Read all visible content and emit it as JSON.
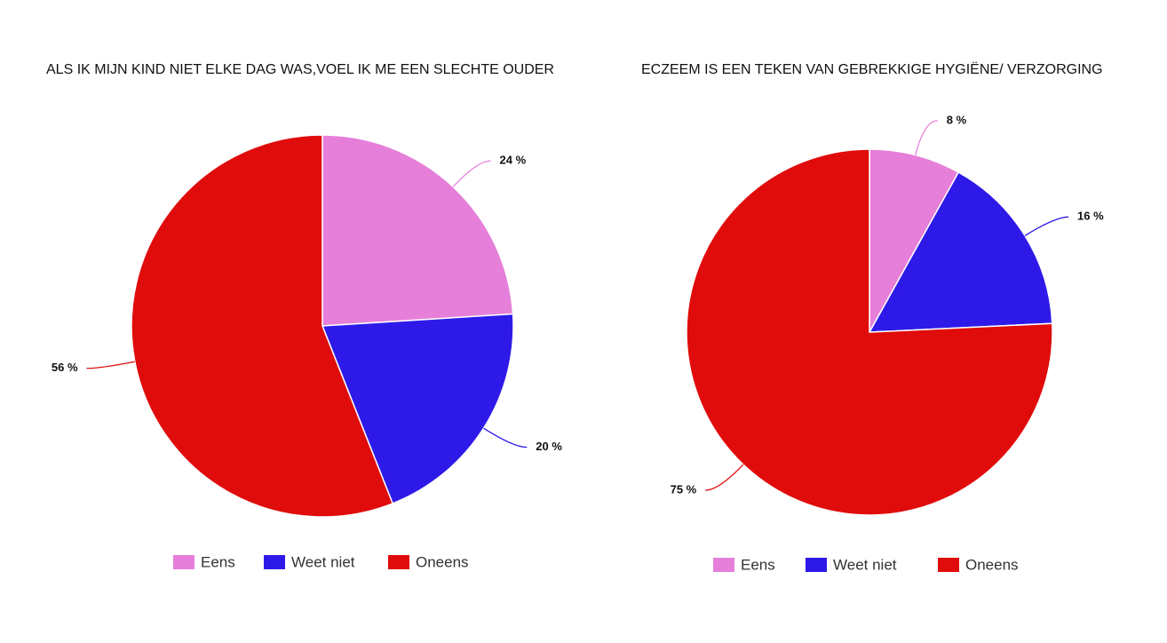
{
  "chart_data": [
    {
      "type": "pie",
      "title": "ALS IK MIJN KIND NIET ELKE DAG WAS,VOEL IK ME EEN SLECHTE OUDER",
      "categories": [
        "Eens",
        "Weet niet",
        "Oneens"
      ],
      "values": [
        24,
        20,
        56
      ],
      "value_labels": [
        "24 %",
        "20 %",
        "56 %"
      ],
      "colors": [
        "#e67fd9",
        "#2e1ae8",
        "#e00c0c"
      ],
      "legend": "bottom"
    },
    {
      "type": "pie",
      "title": "ECZEEM IS EEN TEKEN VAN GEBREKKIGE HYGIËNE/ VERZORGING",
      "categories": [
        "Eens",
        "Weet niet",
        "Oneens"
      ],
      "values": [
        8,
        16,
        75
      ],
      "value_labels": [
        "8 %",
        "16 %",
        "75 %"
      ],
      "colors": [
        "#e67fd9",
        "#2e1ae8",
        "#e00c0c"
      ],
      "legend": "bottom"
    }
  ]
}
